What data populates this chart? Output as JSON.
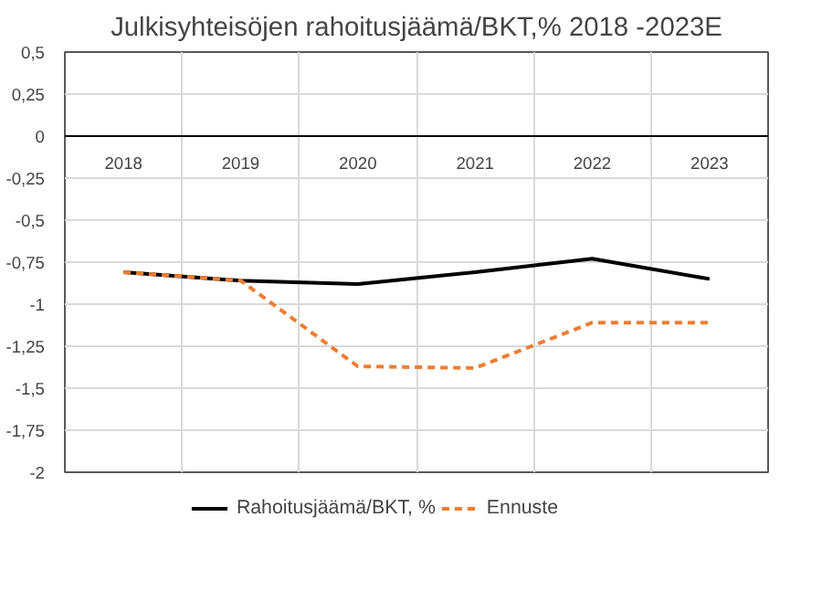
{
  "chart_data": {
    "type": "line",
    "title": "Julkisyhteisöjen rahoitusjäämä/BKT,% 2018 -2023E",
    "categories": [
      "2018",
      "2019",
      "2020",
      "2021",
      "2022",
      "2023"
    ],
    "series": [
      {
        "name": "Rahoitusjäämä/BKT, %",
        "color": "#000000",
        "values": [
          -0.81,
          -0.86,
          -0.88,
          -0.81,
          -0.73,
          -0.85
        ],
        "line_style": "solid"
      },
      {
        "name": "Ennuste",
        "color": "#ed7d31",
        "values": [
          -0.81,
          -0.86,
          -1.37,
          -1.38,
          -1.11,
          -1.11
        ],
        "line_style": "dashed"
      }
    ],
    "ylim": [
      -2,
      0.5
    ],
    "yticks": [
      {
        "value": 0.5,
        "label": "0,5"
      },
      {
        "value": 0.25,
        "label": "0,25"
      },
      {
        "value": 0,
        "label": "0"
      },
      {
        "value": -0.25,
        "label": "-0,25"
      },
      {
        "value": -0.5,
        "label": "-0,5"
      },
      {
        "value": -0.75,
        "label": "-0,75"
      },
      {
        "value": -1,
        "label": "-1"
      },
      {
        "value": -1.25,
        "label": "-1,25"
      },
      {
        "value": -1.5,
        "label": "-1,5"
      },
      {
        "value": -1.75,
        "label": "-1,75"
      },
      {
        "value": -2,
        "label": "-2"
      }
    ],
    "grid": true,
    "legend": "bottom",
    "marker": "none"
  }
}
